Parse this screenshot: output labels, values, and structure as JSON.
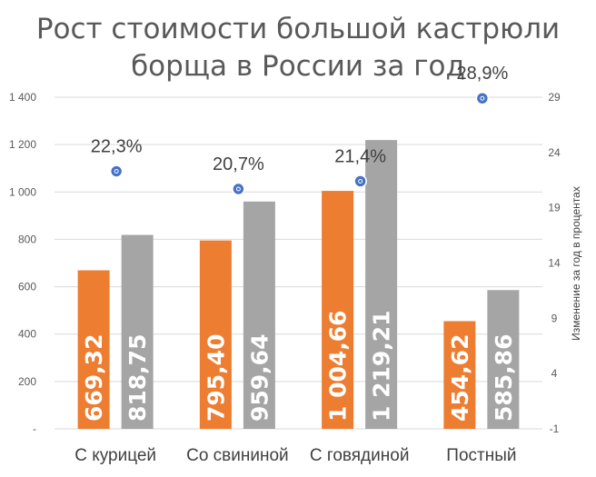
{
  "chart_data": {
    "type": "bar",
    "title_lines": [
      "Рост стоимости большой кастрюли",
      "борща в России за год"
    ],
    "categories": [
      "С курицей",
      "Со свининой",
      "С говядиной",
      "Постный"
    ],
    "series": [
      {
        "color": "#ed7d31",
        "values": [
          669.32,
          795.4,
          1004.66,
          454.62
        ],
        "labels": [
          "669,32",
          "795,40",
          "1 004,66",
          "454,62"
        ]
      },
      {
        "color": "#a5a5a5",
        "values": [
          818.75,
          959.64,
          1219.21,
          585.86
        ],
        "labels": [
          "818,75",
          "959,64",
          "1 219,21",
          "585,86"
        ]
      }
    ],
    "percent_series": {
      "color": "#4472c4",
      "values": [
        22.3,
        20.7,
        21.4,
        28.9
      ],
      "labels": [
        "22,3%",
        "20,7%",
        "21,4%",
        "28,9%"
      ]
    },
    "left_axis": {
      "ylim": [
        0,
        1400
      ],
      "ticks": [
        "-",
        "200",
        "400",
        "600",
        "800",
        "1 000",
        "1 200",
        "1 400"
      ]
    },
    "right_axis": {
      "ylabel": "Изменение за год в процентах",
      "ylim": [
        -1,
        29
      ],
      "ticks": [
        "-1",
        "4",
        "9",
        "14",
        "19",
        "24",
        "29"
      ]
    },
    "grid": true,
    "legend": "none"
  }
}
